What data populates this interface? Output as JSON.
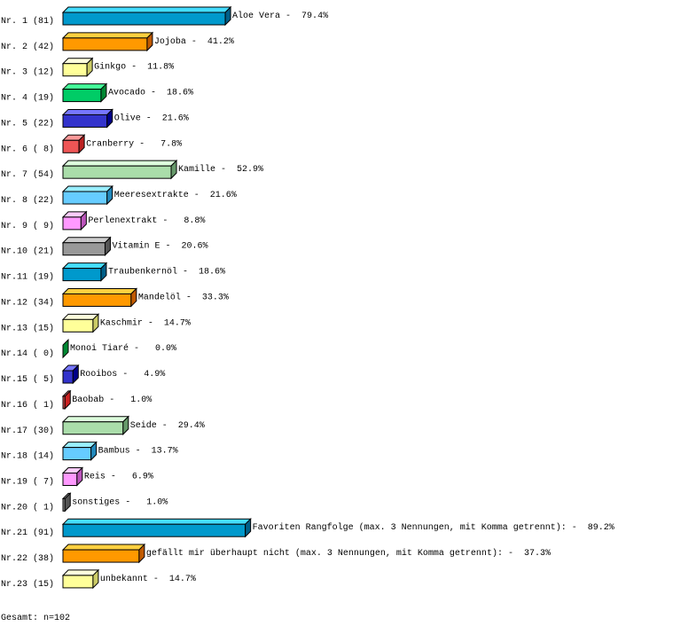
{
  "chart_data": {
    "type": "bar",
    "orientation": "horizontal",
    "style": "3d",
    "categories": [
      "Aloe Vera",
      "Jojoba",
      "Ginkgo",
      "Avocado",
      "Olive",
      "Cranberry",
      "Kamille",
      "Meeresextrakte",
      "Perlenextrakt",
      "Vitamin E",
      "Traubenkernöl",
      "Mandelöl",
      "Kaschmir",
      "Monoi Tiaré",
      "Rooibos",
      "Baobab",
      "Seide",
      "Bambus",
      "Reis",
      "sonstiges",
      "Favoriten Rangfolge (max. 3 Nennungen, mit Komma getrennt):",
      "gefällt mir überhaupt nicht (max. 3 Nennungen, mit Komma getrennt):",
      "unbekannt"
    ],
    "row_labels": [
      "Nr. 1 (81)",
      "Nr. 2 (42)",
      "Nr. 3 (12)",
      "Nr. 4 (19)",
      "Nr. 5 (22)",
      "Nr. 6 ( 8)",
      "Nr. 7 (54)",
      "Nr. 8 (22)",
      "Nr. 9 ( 9)",
      "Nr.10 (21)",
      "Nr.11 (19)",
      "Nr.12 (34)",
      "Nr.13 (15)",
      "Nr.14 ( 0)",
      "Nr.15 ( 5)",
      "Nr.16 ( 1)",
      "Nr.17 (30)",
      "Nr.18 (14)",
      "Nr.19 ( 7)",
      "Nr.20 ( 1)",
      "Nr.21 (91)",
      "Nr.22 (38)",
      "Nr.23 (15)"
    ],
    "values": [
      81,
      42,
      12,
      19,
      22,
      8,
      54,
      22,
      9,
      21,
      19,
      34,
      15,
      0,
      5,
      1,
      30,
      14,
      7,
      1,
      91,
      38,
      15
    ],
    "percents": [
      "79.4%",
      "41.2%",
      "11.8%",
      "18.6%",
      "21.6%",
      "7.8%",
      "52.9%",
      "21.6%",
      "8.8%",
      "20.6%",
      "18.6%",
      "33.3%",
      "14.7%",
      "0.0%",
      "4.9%",
      "1.0%",
      "29.4%",
      "13.7%",
      "6.9%",
      "1.0%",
      "89.2%",
      "37.3%",
      "14.7%"
    ],
    "colors": [
      {
        "front": "#0099cc",
        "top": "#44ddff",
        "side": "#005f88"
      },
      {
        "front": "#ff9900",
        "top": "#ffd040",
        "side": "#c05a00"
      },
      {
        "front": "#ffff99",
        "top": "#ffffdd",
        "side": "#cccc66"
      },
      {
        "front": "#00cc66",
        "top": "#44ff99",
        "side": "#008833"
      },
      {
        "front": "#3333cc",
        "top": "#7777ff",
        "side": "#000088"
      },
      {
        "front": "#ee5555",
        "top": "#ff9999",
        "side": "#bb2222"
      },
      {
        "front": "#aaddaa",
        "top": "#ddffdd",
        "side": "#66996a"
      },
      {
        "front": "#66ccff",
        "top": "#99eeff",
        "side": "#2288bb"
      },
      {
        "front": "#ff99ff",
        "top": "#ffccff",
        "side": "#bb55bb"
      },
      {
        "front": "#999999",
        "top": "#cccccc",
        "side": "#555555"
      },
      {
        "front": "#0099cc",
        "top": "#44ddff",
        "side": "#005f88"
      },
      {
        "front": "#ff9900",
        "top": "#ffd040",
        "side": "#c05a00"
      },
      {
        "front": "#ffff99",
        "top": "#ffffdd",
        "side": "#cccc66"
      },
      {
        "front": "#00cc66",
        "top": "#44ff99",
        "side": "#008833"
      },
      {
        "front": "#3333cc",
        "top": "#7777ff",
        "side": "#000088"
      },
      {
        "front": "#ee5555",
        "top": "#ff9999",
        "side": "#cc2222"
      },
      {
        "front": "#aaddaa",
        "top": "#ddffdd",
        "side": "#66996a"
      },
      {
        "front": "#66ccff",
        "top": "#99eeff",
        "side": "#2288bb"
      },
      {
        "front": "#ff99ff",
        "top": "#ffccff",
        "side": "#bb55bb"
      },
      {
        "front": "#999999",
        "top": "#cccccc",
        "side": "#555555"
      },
      {
        "front": "#0099cc",
        "top": "#44ddff",
        "side": "#005f88"
      },
      {
        "front": "#ff9900",
        "top": "#ffd040",
        "side": "#c05a00"
      },
      {
        "front": "#ffff99",
        "top": "#ffffdd",
        "side": "#cccc66"
      }
    ],
    "xlim": [
      0,
      102
    ],
    "grid": false
  },
  "footer": {
    "total": "Gesamt: n=102"
  }
}
